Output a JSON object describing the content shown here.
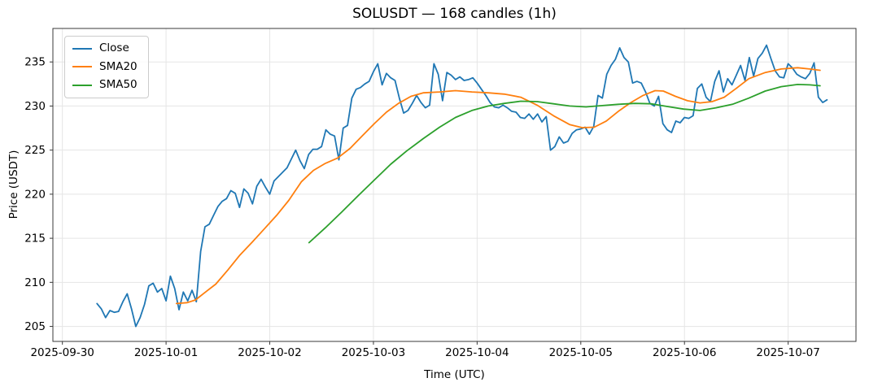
{
  "chart_data": {
    "type": "line",
    "title": "SOLUSDT — 168 candles (1h)",
    "xlabel": "Time (UTC)",
    "ylabel": "Price (USDT)",
    "grid": true,
    "legend_position": "upper left",
    "background_color": "#ffffff",
    "grid_color": "#e5e5e5",
    "spine_color": "#3a3a3a",
    "text_color": "#000000",
    "x_unit": "hours since 2025-09-30 00:00 UTC",
    "xlim": [
      -2.2,
      183.7
    ],
    "ylim": [
      203.3,
      238.8
    ],
    "y_ticks": [
      205,
      210,
      215,
      220,
      225,
      230,
      235
    ],
    "x_ticks": [
      {
        "t": 0,
        "label": "2025-09-30"
      },
      {
        "t": 24,
        "label": "2025-10-01"
      },
      {
        "t": 48,
        "label": "2025-10-02"
      },
      {
        "t": 72,
        "label": "2025-10-03"
      },
      {
        "t": 96,
        "label": "2025-10-04"
      },
      {
        "t": 120,
        "label": "2025-10-05"
      },
      {
        "t": 144,
        "label": "2025-10-06"
      },
      {
        "t": 168,
        "label": "2025-10-07"
      }
    ],
    "series": [
      {
        "name": "Close",
        "color": "#1f77b4",
        "t_start": 8,
        "t_step": 1,
        "values": [
          207.6,
          207.0,
          206.0,
          206.8,
          206.6,
          206.7,
          207.8,
          208.7,
          207.0,
          205.0,
          206.0,
          207.5,
          209.6,
          209.9,
          208.9,
          209.3,
          207.9,
          210.7,
          209.3,
          206.9,
          208.9,
          207.9,
          209.1,
          207.8,
          213.5,
          216.3,
          216.6,
          217.6,
          218.6,
          219.2,
          219.5,
          220.4,
          220.1,
          218.5,
          220.6,
          220.1,
          218.9,
          220.9,
          221.7,
          220.8,
          220.0,
          221.5,
          222.0,
          222.5,
          223.0,
          224.0,
          225.0,
          223.8,
          222.9,
          224.5,
          225.1,
          225.1,
          225.4,
          227.3,
          226.8,
          226.6,
          223.9,
          227.5,
          227.8,
          230.9,
          231.9,
          232.1,
          232.5,
          232.8,
          233.9,
          234.8,
          232.4,
          233.7,
          233.2,
          232.9,
          230.9,
          229.2,
          229.5,
          230.3,
          231.2,
          230.4,
          229.8,
          230.1,
          234.8,
          233.6,
          230.6,
          233.8,
          233.5,
          233.0,
          233.3,
          232.9,
          233.0,
          233.2,
          232.6,
          231.9,
          231.2,
          230.4,
          229.9,
          229.8,
          230.1,
          229.8,
          229.4,
          229.3,
          228.7,
          228.6,
          229.1,
          228.5,
          229.1,
          228.2,
          228.8,
          225.0,
          225.4,
          226.5,
          225.8,
          226.0,
          226.9,
          227.3,
          227.4,
          227.6,
          226.8,
          227.7,
          231.2,
          230.9,
          233.6,
          234.6,
          235.3,
          236.6,
          235.5,
          235.0,
          232.6,
          232.8,
          232.6,
          231.6,
          230.3,
          230.0,
          231.1,
          228.0,
          227.3,
          227.0,
          228.3,
          228.1,
          228.7,
          228.6,
          228.9,
          232.0,
          232.5,
          231.0,
          230.5,
          232.8,
          234.0,
          231.6,
          233.1,
          232.4,
          233.5,
          234.6,
          232.9,
          235.5,
          233.4,
          235.4,
          236.0,
          236.9,
          235.4,
          234.0,
          233.3,
          233.2,
          234.8,
          234.3,
          233.6,
          233.3,
          233.1,
          233.7,
          234.9,
          231.0,
          230.4,
          230.7
        ]
      },
      {
        "name": "SMA20",
        "color": "#ff7f0e",
        "points": [
          [
            26.4,
            207.6
          ],
          [
            28.9,
            207.7
          ],
          [
            30.8,
            208.0
          ],
          [
            32.6,
            208.7
          ],
          [
            35.5,
            209.8
          ],
          [
            38.3,
            211.4
          ],
          [
            41.1,
            213.1
          ],
          [
            44.0,
            214.6
          ],
          [
            46.8,
            216.1
          ],
          [
            49.6,
            217.6
          ],
          [
            52.4,
            219.3
          ],
          [
            55.3,
            221.4
          ],
          [
            58.1,
            222.7
          ],
          [
            60.9,
            223.5
          ],
          [
            63.7,
            224.1
          ],
          [
            66.6,
            225.2
          ],
          [
            69.4,
            226.6
          ],
          [
            72.2,
            228.0
          ],
          [
            75.0,
            229.3
          ],
          [
            77.8,
            230.3
          ],
          [
            80.7,
            231.1
          ],
          [
            83.5,
            231.5
          ],
          [
            87.3,
            231.6
          ],
          [
            91.0,
            231.75
          ],
          [
            94.8,
            231.6
          ],
          [
            98.6,
            231.5
          ],
          [
            102.3,
            231.35
          ],
          [
            106.1,
            231.0
          ],
          [
            109.9,
            230.1
          ],
          [
            113.7,
            228.9
          ],
          [
            117.4,
            227.9
          ],
          [
            120.3,
            227.55
          ],
          [
            123.1,
            227.6
          ],
          [
            125.9,
            228.3
          ],
          [
            128.7,
            229.4
          ],
          [
            131.6,
            230.4
          ],
          [
            134.4,
            231.2
          ],
          [
            137.2,
            231.75
          ],
          [
            139.1,
            231.7
          ],
          [
            141.9,
            231.1
          ],
          [
            144.7,
            230.6
          ],
          [
            147.6,
            230.35
          ],
          [
            150.4,
            230.5
          ],
          [
            153.2,
            231.0
          ],
          [
            156.0,
            232.0
          ],
          [
            158.9,
            233.1
          ],
          [
            162.7,
            233.8
          ],
          [
            166.4,
            234.2
          ],
          [
            170.2,
            234.35
          ],
          [
            173.0,
            234.2
          ],
          [
            175.4,
            234.05
          ]
        ]
      },
      {
        "name": "SMA50",
        "color": "#2ca02c",
        "points": [
          [
            57.1,
            214.5
          ],
          [
            60.9,
            216.2
          ],
          [
            64.7,
            218.0
          ],
          [
            68.4,
            219.8
          ],
          [
            72.2,
            221.6
          ],
          [
            76.0,
            223.4
          ],
          [
            79.7,
            224.9
          ],
          [
            83.5,
            226.3
          ],
          [
            87.3,
            227.6
          ],
          [
            91.0,
            228.7
          ],
          [
            94.8,
            229.5
          ],
          [
            98.6,
            230.0
          ],
          [
            102.3,
            230.3
          ],
          [
            106.1,
            230.55
          ],
          [
            109.9,
            230.5
          ],
          [
            113.7,
            230.25
          ],
          [
            117.4,
            230.0
          ],
          [
            121.2,
            229.9
          ],
          [
            125.0,
            230.05
          ],
          [
            128.7,
            230.2
          ],
          [
            132.5,
            230.3
          ],
          [
            136.3,
            230.25
          ],
          [
            140.0,
            229.95
          ],
          [
            143.8,
            229.65
          ],
          [
            147.6,
            229.5
          ],
          [
            151.3,
            229.8
          ],
          [
            155.1,
            230.2
          ],
          [
            158.9,
            230.9
          ],
          [
            162.7,
            231.7
          ],
          [
            166.4,
            232.2
          ],
          [
            170.2,
            232.45
          ],
          [
            173.0,
            232.4
          ],
          [
            175.4,
            232.3
          ]
        ]
      }
    ]
  }
}
